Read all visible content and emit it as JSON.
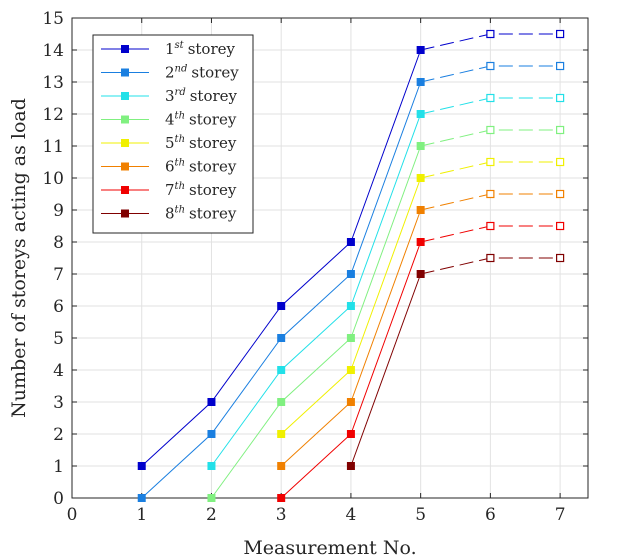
{
  "chart_data": {
    "type": "line",
    "xlabel": "Measurement No.",
    "ylabel": "Number of storeys acting as load",
    "xlim": [
      0,
      7.4
    ],
    "ylim": [
      0,
      15
    ],
    "xticks": [
      0,
      1,
      2,
      3,
      4,
      5,
      6,
      7
    ],
    "yticks": [
      0,
      1,
      2,
      3,
      4,
      5,
      6,
      7,
      8,
      9,
      10,
      11,
      12,
      13,
      14,
      15
    ],
    "grid": true,
    "legend_position": "top-left",
    "series": [
      {
        "name": "1st storey",
        "ordinal": "1",
        "sup": "st",
        "color": "#0000cc",
        "solid": [
          [
            1,
            1
          ],
          [
            2,
            3
          ],
          [
            3,
            6
          ],
          [
            4,
            8
          ],
          [
            5,
            14
          ]
        ],
        "projected": [
          [
            5,
            14
          ],
          [
            6,
            14.5
          ],
          [
            7,
            14.5
          ]
        ]
      },
      {
        "name": "2nd storey",
        "ordinal": "2",
        "sup": "nd",
        "color": "#1a7fe0",
        "solid": [
          [
            1,
            0
          ],
          [
            2,
            2
          ],
          [
            3,
            5
          ],
          [
            4,
            7
          ],
          [
            5,
            13
          ]
        ],
        "projected": [
          [
            5,
            13
          ],
          [
            6,
            13.5
          ],
          [
            7,
            13.5
          ]
        ]
      },
      {
        "name": "3rd storey",
        "ordinal": "3",
        "sup": "rd",
        "color": "#22e0e8",
        "solid": [
          [
            2,
            1
          ],
          [
            3,
            4
          ],
          [
            4,
            6
          ],
          [
            5,
            12
          ]
        ],
        "projected": [
          [
            5,
            12
          ],
          [
            6,
            12.5
          ],
          [
            7,
            12.5
          ]
        ]
      },
      {
        "name": "4th storey",
        "ordinal": "4",
        "sup": "th",
        "color": "#80f080",
        "solid": [
          [
            2,
            0
          ],
          [
            3,
            3
          ],
          [
            4,
            5
          ],
          [
            5,
            11
          ]
        ],
        "projected": [
          [
            5,
            11
          ],
          [
            6,
            11.5
          ],
          [
            7,
            11.5
          ]
        ]
      },
      {
        "name": "5th storey",
        "ordinal": "5",
        "sup": "th",
        "color": "#f0f000",
        "solid": [
          [
            3,
            2
          ],
          [
            4,
            4
          ],
          [
            5,
            10
          ]
        ],
        "projected": [
          [
            5,
            10
          ],
          [
            6,
            10.5
          ],
          [
            7,
            10.5
          ]
        ]
      },
      {
        "name": "6th storey",
        "ordinal": "6",
        "sup": "th",
        "color": "#f08000",
        "solid": [
          [
            3,
            1
          ],
          [
            4,
            3
          ],
          [
            5,
            9
          ]
        ],
        "projected": [
          [
            5,
            9
          ],
          [
            6,
            9.5
          ],
          [
            7,
            9.5
          ]
        ]
      },
      {
        "name": "7th storey",
        "ordinal": "7",
        "sup": "th",
        "color": "#f00000",
        "solid": [
          [
            3,
            0
          ],
          [
            4,
            2
          ],
          [
            5,
            8
          ]
        ],
        "projected": [
          [
            5,
            8
          ],
          [
            6,
            8.5
          ],
          [
            7,
            8.5
          ]
        ]
      },
      {
        "name": "8th storey",
        "ordinal": "8",
        "sup": "th",
        "color": "#800000",
        "solid": [
          [
            4,
            1
          ],
          [
            5,
            7
          ]
        ],
        "projected": [
          [
            5,
            7
          ],
          [
            6,
            7.5
          ],
          [
            7,
            7.5
          ]
        ]
      }
    ],
    "legend_word": "storey"
  }
}
